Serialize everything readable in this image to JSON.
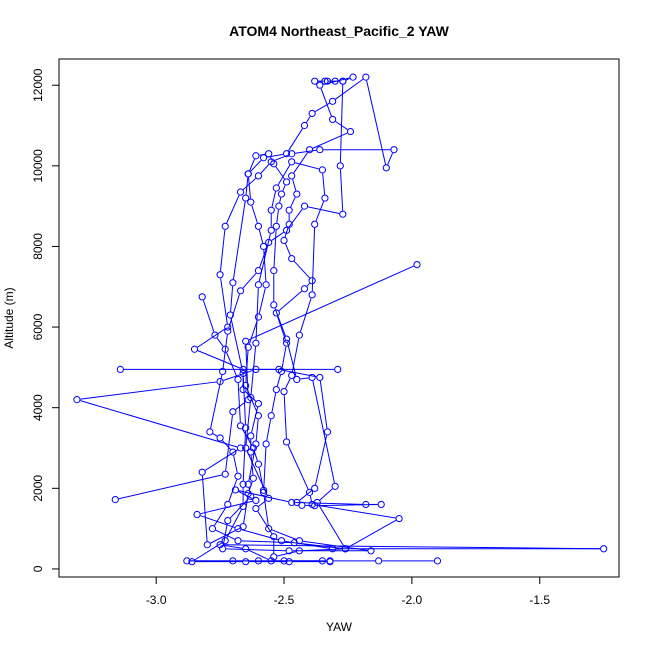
{
  "chart_data": {
    "type": "line",
    "title": "ATOM4 Northeast_Pacific_2 YAW",
    "xlabel": "YAW",
    "ylabel": "Altitude (m)",
    "xlim": [
      -3.38,
      -1.19
    ],
    "ylim": [
      -200,
      12650
    ],
    "x_ticks": [
      -3.0,
      -2.5,
      -2.0,
      -1.5
    ],
    "x_tick_labels": [
      "-3.0",
      "-2.5",
      "-2.0",
      "-1.5"
    ],
    "y_ticks": [
      0,
      2000,
      4000,
      6000,
      8000,
      10000,
      12000
    ],
    "y_tick_labels": [
      "0",
      "2000",
      "4000",
      "6000",
      "8000",
      "10000",
      "12000"
    ],
    "series_color": "#0000ff",
    "series": [
      {
        "values_note": "",
        "points": [
          [
            -1.9,
            200
          ],
          [
            -2.13,
            200
          ],
          [
            -2.32,
            200
          ],
          [
            -2.5,
            200
          ],
          [
            -2.6,
            200
          ],
          [
            -2.7,
            200
          ],
          [
            -2.88,
            200
          ],
          [
            -2.35,
            200
          ],
          [
            -2.55,
            200
          ],
          [
            -2.65,
            500
          ],
          [
            -2.75,
            600
          ],
          [
            -1.25,
            500
          ],
          [
            -2.31,
            500
          ],
          [
            -2.51,
            700
          ],
          [
            -2.68,
            1000
          ],
          [
            -2.84,
            1350
          ],
          [
            -2.61,
            1700
          ],
          [
            -2.69,
            1960
          ],
          [
            -2.47,
            1650
          ],
          [
            -2.18,
            1600
          ],
          [
            -2.12,
            1600
          ],
          [
            -2.38,
            1570
          ],
          [
            -2.43,
            1580
          ],
          [
            -2.45,
            1650
          ],
          [
            -2.38,
            2000
          ],
          [
            -2.33,
            3400
          ],
          [
            -2.36,
            4750
          ],
          [
            -2.52,
            4950
          ],
          [
            -2.61,
            4950
          ],
          [
            -2.75,
            4650
          ],
          [
            -3.31,
            4200
          ],
          [
            -2.67,
            3000
          ],
          [
            -2.82,
            2400
          ],
          [
            -2.8,
            600
          ],
          [
            -2.66,
            1050
          ],
          [
            -2.64,
            1870
          ],
          [
            -2.62,
            2250
          ],
          [
            -2.63,
            2900
          ],
          [
            -2.63,
            3300
          ],
          [
            -2.6,
            4100
          ],
          [
            -2.66,
            4450
          ],
          [
            -2.66,
            4950
          ],
          [
            -2.85,
            5450
          ],
          [
            -2.72,
            6000
          ],
          [
            -2.75,
            7300
          ],
          [
            -2.73,
            8500
          ],
          [
            -2.67,
            9350
          ],
          [
            -2.6,
            9750
          ],
          [
            -2.55,
            10100
          ],
          [
            -2.47,
            10300
          ],
          [
            -2.36,
            10400
          ],
          [
            -2.07,
            10400
          ],
          [
            -2.1,
            9950
          ],
          [
            -2.18,
            12200
          ],
          [
            -2.31,
            11600
          ],
          [
            -2.39,
            11300
          ],
          [
            -2.42,
            11000
          ],
          [
            -2.49,
            10300
          ],
          [
            -2.58,
            10200
          ],
          [
            -2.64,
            9800
          ],
          [
            -2.63,
            9100
          ],
          [
            -2.6,
            8500
          ],
          [
            -2.58,
            8000
          ],
          [
            -2.57,
            7050
          ],
          [
            -2.6,
            6250
          ],
          [
            -2.64,
            5500
          ],
          [
            -2.65,
            4550
          ],
          [
            -2.6,
            3800
          ],
          [
            -2.61,
            3100
          ],
          [
            -2.64,
            2100
          ],
          [
            -2.63,
            1800
          ],
          [
            -2.72,
            1200
          ],
          [
            -2.74,
            500
          ],
          [
            -2.48,
            450
          ],
          [
            -2.16,
            450
          ],
          [
            -2.44,
            700
          ],
          [
            -2.56,
            1000
          ],
          [
            -2.58,
            1900
          ],
          [
            -2.57,
            3100
          ],
          [
            -2.55,
            3800
          ],
          [
            -2.53,
            4450
          ],
          [
            -2.51,
            4900
          ],
          [
            -2.49,
            5600
          ],
          [
            -2.53,
            6350
          ],
          [
            -2.42,
            6950
          ],
          [
            -2.39,
            7150
          ],
          [
            -2.47,
            7700
          ],
          [
            -2.5,
            8150
          ],
          [
            -2.48,
            8550
          ],
          [
            -2.48,
            8900
          ],
          [
            -2.45,
            9300
          ],
          [
            -2.47,
            9750
          ],
          [
            -2.4,
            10400
          ],
          [
            -2.24,
            10850
          ],
          [
            -2.31,
            11150
          ],
          [
            -2.36,
            12000
          ],
          [
            -2.23,
            12200
          ],
          [
            -2.27,
            12100
          ],
          [
            -2.3,
            12100
          ],
          [
            -2.34,
            12100
          ],
          [
            -2.38,
            12100
          ],
          [
            -2.33,
            12100
          ],
          [
            -2.27,
            12100
          ],
          [
            -2.28,
            10000
          ],
          [
            -2.27,
            8800
          ],
          [
            -2.42,
            9000
          ],
          [
            -2.49,
            8400
          ],
          [
            -2.56,
            8100
          ],
          [
            -2.6,
            7400
          ],
          [
            -2.67,
            6900
          ],
          [
            -2.72,
            5900
          ],
          [
            -2.74,
            4900
          ],
          [
            -2.79,
            3400
          ],
          [
            -2.75,
            3250
          ],
          [
            -2.7,
            2900
          ],
          [
            -2.68,
            2300
          ],
          [
            -2.72,
            1600
          ],
          [
            -2.78,
            1000
          ],
          [
            -2.68,
            700
          ],
          [
            -2.46,
            650
          ],
          [
            -2.26,
            500
          ],
          [
            -2.05,
            1250
          ],
          [
            -2.39,
            1600
          ],
          [
            -2.4,
            1900
          ],
          [
            -2.49,
            3150
          ],
          [
            -2.5,
            4400
          ],
          [
            -2.47,
            4800
          ],
          [
            -2.44,
            5800
          ],
          [
            -2.39,
            6800
          ],
          [
            -2.38,
            8550
          ],
          [
            -2.34,
            9200
          ],
          [
            -2.35,
            9900
          ],
          [
            -2.47,
            10100
          ],
          [
            -2.53,
            9450
          ],
          [
            -2.55,
            8900
          ],
          [
            -2.55,
            8400
          ],
          [
            -2.6,
            7050
          ],
          [
            -2.61,
            5600
          ],
          [
            -2.63,
            4250
          ],
          [
            -2.65,
            3000
          ],
          [
            -2.56,
            1750
          ],
          [
            -2.61,
            1500
          ],
          [
            -2.54,
            800
          ],
          [
            -2.54,
            300
          ],
          [
            -2.44,
            450
          ],
          [
            -2.26,
            500
          ],
          [
            -2.37,
            1650
          ],
          [
            -2.3,
            2050
          ],
          [
            -2.39,
            4750
          ],
          [
            -2.45,
            4700
          ],
          [
            -2.49,
            5700
          ],
          [
            -2.54,
            6550
          ],
          [
            -2.54,
            7400
          ],
          [
            -2.53,
            8500
          ],
          [
            -2.52,
            9000
          ],
          [
            -2.51,
            9300
          ],
          [
            -2.49,
            9600
          ],
          [
            -2.54,
            10050
          ],
          [
            -2.56,
            10300
          ],
          [
            -2.61,
            10250
          ],
          [
            -2.64,
            9800
          ],
          [
            -2.65,
            9200
          ],
          [
            -2.7,
            7100
          ],
          [
            -2.71,
            6300
          ],
          [
            -2.66,
            4850
          ],
          [
            -2.65,
            3500
          ],
          [
            -2.66,
            2100
          ],
          [
            -2.66,
            1550
          ],
          [
            -2.73,
            700
          ],
          [
            -2.86,
            180
          ],
          [
            -2.65,
            180
          ],
          [
            -2.48,
            180
          ],
          [
            -2.32,
            180
          ]
        ]
      },
      {
        "points": [
          [
            -3.14,
            4950
          ],
          [
            -2.29,
            4950
          ]
        ]
      },
      {
        "points": [
          [
            -1.98,
            7550
          ],
          [
            -2.65,
            5650
          ],
          [
            -2.64,
            4200
          ],
          [
            -2.7,
            3900
          ],
          [
            -2.73,
            2350
          ],
          [
            -3.16,
            1720
          ]
        ]
      },
      {
        "points": [
          [
            -2.82,
            6750
          ],
          [
            -2.77,
            5800
          ],
          [
            -2.73,
            5450
          ],
          [
            -2.68,
            4700
          ],
          [
            -2.67,
            3550
          ],
          [
            -2.62,
            3000
          ],
          [
            -2.6,
            2600
          ],
          [
            -2.58,
            1950
          ]
        ]
      }
    ]
  }
}
